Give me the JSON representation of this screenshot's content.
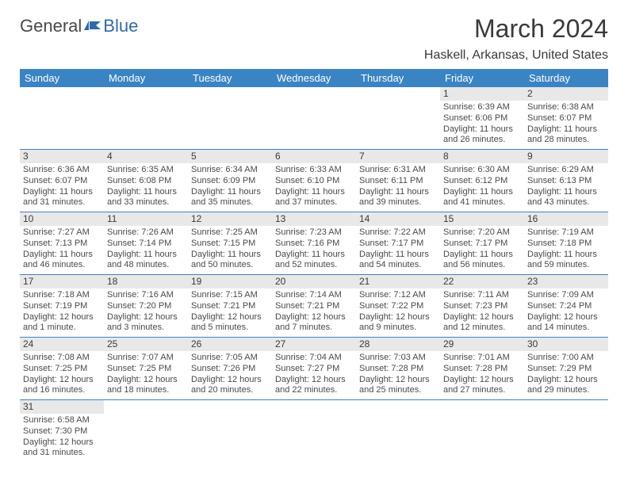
{
  "logo": {
    "general": "General",
    "blue": "Blue"
  },
  "title": "March 2024",
  "location": "Haskell, Arkansas, United States",
  "colors": {
    "header_bg": "#3b84c4",
    "header_text": "#ffffff",
    "daynum_bg": "#e8e8e8",
    "cell_border": "#3b84c4",
    "body_text": "#4a4a4a",
    "logo_blue": "#2f6aa8"
  },
  "days_of_week": [
    "Sunday",
    "Monday",
    "Tuesday",
    "Wednesday",
    "Thursday",
    "Friday",
    "Saturday"
  ],
  "weeks": [
    [
      null,
      null,
      null,
      null,
      null,
      {
        "n": "1",
        "sr": "Sunrise: 6:39 AM",
        "ss": "Sunset: 6:06 PM",
        "dl": "Daylight: 11 hours and 26 minutes."
      },
      {
        "n": "2",
        "sr": "Sunrise: 6:38 AM",
        "ss": "Sunset: 6:07 PM",
        "dl": "Daylight: 11 hours and 28 minutes."
      }
    ],
    [
      {
        "n": "3",
        "sr": "Sunrise: 6:36 AM",
        "ss": "Sunset: 6:07 PM",
        "dl": "Daylight: 11 hours and 31 minutes."
      },
      {
        "n": "4",
        "sr": "Sunrise: 6:35 AM",
        "ss": "Sunset: 6:08 PM",
        "dl": "Daylight: 11 hours and 33 minutes."
      },
      {
        "n": "5",
        "sr": "Sunrise: 6:34 AM",
        "ss": "Sunset: 6:09 PM",
        "dl": "Daylight: 11 hours and 35 minutes."
      },
      {
        "n": "6",
        "sr": "Sunrise: 6:33 AM",
        "ss": "Sunset: 6:10 PM",
        "dl": "Daylight: 11 hours and 37 minutes."
      },
      {
        "n": "7",
        "sr": "Sunrise: 6:31 AM",
        "ss": "Sunset: 6:11 PM",
        "dl": "Daylight: 11 hours and 39 minutes."
      },
      {
        "n": "8",
        "sr": "Sunrise: 6:30 AM",
        "ss": "Sunset: 6:12 PM",
        "dl": "Daylight: 11 hours and 41 minutes."
      },
      {
        "n": "9",
        "sr": "Sunrise: 6:29 AM",
        "ss": "Sunset: 6:13 PM",
        "dl": "Daylight: 11 hours and 43 minutes."
      }
    ],
    [
      {
        "n": "10",
        "sr": "Sunrise: 7:27 AM",
        "ss": "Sunset: 7:13 PM",
        "dl": "Daylight: 11 hours and 46 minutes."
      },
      {
        "n": "11",
        "sr": "Sunrise: 7:26 AM",
        "ss": "Sunset: 7:14 PM",
        "dl": "Daylight: 11 hours and 48 minutes."
      },
      {
        "n": "12",
        "sr": "Sunrise: 7:25 AM",
        "ss": "Sunset: 7:15 PM",
        "dl": "Daylight: 11 hours and 50 minutes."
      },
      {
        "n": "13",
        "sr": "Sunrise: 7:23 AM",
        "ss": "Sunset: 7:16 PM",
        "dl": "Daylight: 11 hours and 52 minutes."
      },
      {
        "n": "14",
        "sr": "Sunrise: 7:22 AM",
        "ss": "Sunset: 7:17 PM",
        "dl": "Daylight: 11 hours and 54 minutes."
      },
      {
        "n": "15",
        "sr": "Sunrise: 7:20 AM",
        "ss": "Sunset: 7:17 PM",
        "dl": "Daylight: 11 hours and 56 minutes."
      },
      {
        "n": "16",
        "sr": "Sunrise: 7:19 AM",
        "ss": "Sunset: 7:18 PM",
        "dl": "Daylight: 11 hours and 59 minutes."
      }
    ],
    [
      {
        "n": "17",
        "sr": "Sunrise: 7:18 AM",
        "ss": "Sunset: 7:19 PM",
        "dl": "Daylight: 12 hours and 1 minute."
      },
      {
        "n": "18",
        "sr": "Sunrise: 7:16 AM",
        "ss": "Sunset: 7:20 PM",
        "dl": "Daylight: 12 hours and 3 minutes."
      },
      {
        "n": "19",
        "sr": "Sunrise: 7:15 AM",
        "ss": "Sunset: 7:21 PM",
        "dl": "Daylight: 12 hours and 5 minutes."
      },
      {
        "n": "20",
        "sr": "Sunrise: 7:14 AM",
        "ss": "Sunset: 7:21 PM",
        "dl": "Daylight: 12 hours and 7 minutes."
      },
      {
        "n": "21",
        "sr": "Sunrise: 7:12 AM",
        "ss": "Sunset: 7:22 PM",
        "dl": "Daylight: 12 hours and 9 minutes."
      },
      {
        "n": "22",
        "sr": "Sunrise: 7:11 AM",
        "ss": "Sunset: 7:23 PM",
        "dl": "Daylight: 12 hours and 12 minutes."
      },
      {
        "n": "23",
        "sr": "Sunrise: 7:09 AM",
        "ss": "Sunset: 7:24 PM",
        "dl": "Daylight: 12 hours and 14 minutes."
      }
    ],
    [
      {
        "n": "24",
        "sr": "Sunrise: 7:08 AM",
        "ss": "Sunset: 7:25 PM",
        "dl": "Daylight: 12 hours and 16 minutes."
      },
      {
        "n": "25",
        "sr": "Sunrise: 7:07 AM",
        "ss": "Sunset: 7:25 PM",
        "dl": "Daylight: 12 hours and 18 minutes."
      },
      {
        "n": "26",
        "sr": "Sunrise: 7:05 AM",
        "ss": "Sunset: 7:26 PM",
        "dl": "Daylight: 12 hours and 20 minutes."
      },
      {
        "n": "27",
        "sr": "Sunrise: 7:04 AM",
        "ss": "Sunset: 7:27 PM",
        "dl": "Daylight: 12 hours and 22 minutes."
      },
      {
        "n": "28",
        "sr": "Sunrise: 7:03 AM",
        "ss": "Sunset: 7:28 PM",
        "dl": "Daylight: 12 hours and 25 minutes."
      },
      {
        "n": "29",
        "sr": "Sunrise: 7:01 AM",
        "ss": "Sunset: 7:28 PM",
        "dl": "Daylight: 12 hours and 27 minutes."
      },
      {
        "n": "30",
        "sr": "Sunrise: 7:00 AM",
        "ss": "Sunset: 7:29 PM",
        "dl": "Daylight: 12 hours and 29 minutes."
      }
    ],
    [
      {
        "n": "31",
        "sr": "Sunrise: 6:58 AM",
        "ss": "Sunset: 7:30 PM",
        "dl": "Daylight: 12 hours and 31 minutes."
      },
      null,
      null,
      null,
      null,
      null,
      null
    ]
  ]
}
